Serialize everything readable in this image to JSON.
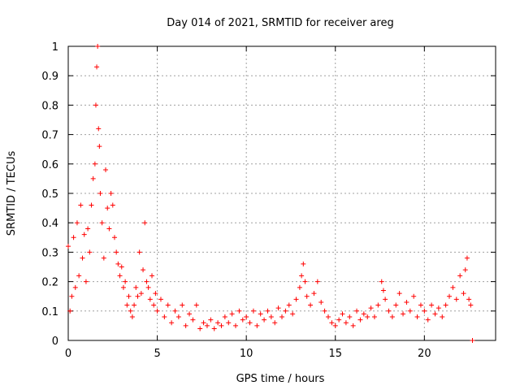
{
  "chart_data": {
    "type": "scatter",
    "title": "Day 014 of 2021, SRMTID for receiver areg",
    "xlabel": "GPS time / hours",
    "ylabel": "SRMTID / TECUs",
    "xlim": [
      0,
      24
    ],
    "ylim": [
      0,
      1
    ],
    "xticks": [
      0,
      5,
      10,
      15,
      20
    ],
    "xtick_labels": [
      "0",
      "5",
      "10",
      "15",
      "20"
    ],
    "yticks": [
      0,
      0.1,
      0.2,
      0.3,
      0.4,
      0.5,
      0.6,
      0.7,
      0.8,
      0.9,
      1
    ],
    "ytick_labels": [
      "0",
      "0.1",
      "0.2",
      "0.3",
      "0.4",
      "0.5",
      "0.6",
      "0.7",
      "0.8",
      "0.9",
      "1"
    ],
    "grid": true,
    "marker": "+",
    "color": "#ff0000",
    "series": [
      {
        "name": "areg",
        "x": [
          0.0,
          0.1,
          0.2,
          0.3,
          0.4,
          0.5,
          0.6,
          0.7,
          0.8,
          0.9,
          1.0,
          1.1,
          1.2,
          1.3,
          1.4,
          1.5,
          1.55,
          1.6,
          1.65,
          1.7,
          1.75,
          1.8,
          1.9,
          2.0,
          2.1,
          2.2,
          2.3,
          2.4,
          2.5,
          2.6,
          2.7,
          2.8,
          2.9,
          3.0,
          3.1,
          3.2,
          3.3,
          3.4,
          3.5,
          3.6,
          3.7,
          3.8,
          3.9,
          4.0,
          4.1,
          4.2,
          4.3,
          4.4,
          4.5,
          4.6,
          4.7,
          4.8,
          4.9,
          5.0,
          5.2,
          5.4,
          5.6,
          5.8,
          6.0,
          6.2,
          6.4,
          6.6,
          6.8,
          7.0,
          7.2,
          7.4,
          7.6,
          7.8,
          8.0,
          8.2,
          8.4,
          8.6,
          8.8,
          9.0,
          9.2,
          9.4,
          9.6,
          9.8,
          10.0,
          10.2,
          10.4,
          10.6,
          10.8,
          11.0,
          11.2,
          11.4,
          11.6,
          11.8,
          12.0,
          12.2,
          12.4,
          12.6,
          12.8,
          13.0,
          13.1,
          13.2,
          13.3,
          13.4,
          13.6,
          13.8,
          14.0,
          14.2,
          14.4,
          14.6,
          14.8,
          15.0,
          15.2,
          15.4,
          15.6,
          15.8,
          16.0,
          16.2,
          16.4,
          16.6,
          16.8,
          17.0,
          17.2,
          17.4,
          17.6,
          17.7,
          17.8,
          18.0,
          18.2,
          18.4,
          18.6,
          18.8,
          19.0,
          19.2,
          19.4,
          19.6,
          19.8,
          20.0,
          20.2,
          20.4,
          20.6,
          20.8,
          21.0,
          21.2,
          21.4,
          21.6,
          21.8,
          22.0,
          22.2,
          22.3,
          22.4,
          22.5,
          22.6,
          22.7
        ],
        "y": [
          0.32,
          0.1,
          0.15,
          0.35,
          0.18,
          0.4,
          0.22,
          0.46,
          0.28,
          0.36,
          0.2,
          0.38,
          0.3,
          0.46,
          0.55,
          0.6,
          0.8,
          0.93,
          1.0,
          0.72,
          0.66,
          0.5,
          0.4,
          0.28,
          0.58,
          0.45,
          0.38,
          0.5,
          0.46,
          0.35,
          0.3,
          0.26,
          0.22,
          0.25,
          0.18,
          0.2,
          0.12,
          0.15,
          0.1,
          0.08,
          0.12,
          0.18,
          0.15,
          0.3,
          0.16,
          0.24,
          0.4,
          0.2,
          0.18,
          0.14,
          0.22,
          0.12,
          0.16,
          0.1,
          0.14,
          0.08,
          0.12,
          0.06,
          0.1,
          0.08,
          0.12,
          0.05,
          0.09,
          0.07,
          0.12,
          0.04,
          0.06,
          0.05,
          0.07,
          0.04,
          0.06,
          0.05,
          0.08,
          0.06,
          0.09,
          0.05,
          0.1,
          0.07,
          0.08,
          0.06,
          0.1,
          0.05,
          0.09,
          0.07,
          0.1,
          0.08,
          0.06,
          0.11,
          0.08,
          0.1,
          0.12,
          0.09,
          0.14,
          0.18,
          0.22,
          0.26,
          0.2,
          0.15,
          0.12,
          0.16,
          0.2,
          0.13,
          0.1,
          0.08,
          0.06,
          0.05,
          0.07,
          0.09,
          0.06,
          0.08,
          0.05,
          0.1,
          0.07,
          0.09,
          0.08,
          0.11,
          0.08,
          0.12,
          0.2,
          0.17,
          0.14,
          0.1,
          0.08,
          0.12,
          0.16,
          0.09,
          0.13,
          0.1,
          0.15,
          0.08,
          0.12,
          0.1,
          0.07,
          0.12,
          0.09,
          0.11,
          0.08,
          0.12,
          0.15,
          0.18,
          0.14,
          0.22,
          0.16,
          0.24,
          0.28,
          0.14,
          0.12,
          0.0
        ]
      }
    ]
  }
}
